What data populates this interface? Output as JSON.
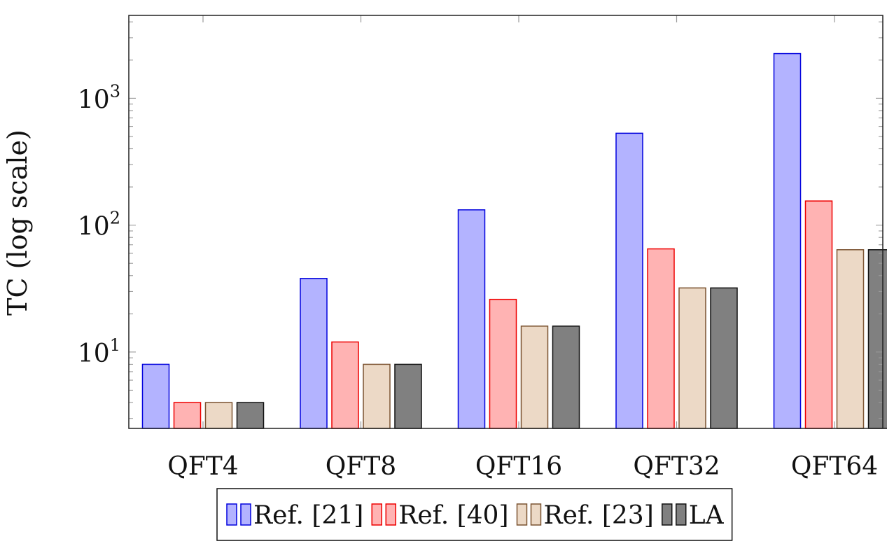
{
  "chart_data": {
    "type": "bar",
    "title": "",
    "xlabel": "",
    "ylabel": "TC (log scale)",
    "yscale": "log",
    "ylim": [
      2.5,
      4500
    ],
    "ytick_labels": [
      {
        "value": 10,
        "base": "10",
        "exp": "1"
      },
      {
        "value": 100,
        "base": "10",
        "exp": "2"
      },
      {
        "value": 1000,
        "base": "10",
        "exp": "3"
      }
    ],
    "categories": [
      "QFT4",
      "QFT8",
      "QFT16",
      "QFT32",
      "QFT64"
    ],
    "series": [
      {
        "name": "Ref. [21]",
        "values": [
          8,
          38,
          132,
          530,
          2250
        ],
        "fill": "#b3b3ff",
        "stroke": "#0000dd"
      },
      {
        "name": "Ref. [40]",
        "values": [
          4,
          12,
          26,
          65,
          155
        ],
        "fill": "#ffb3b3",
        "stroke": "#ee0000"
      },
      {
        "name": "Ref. [23]",
        "values": [
          4,
          8,
          16,
          32,
          64
        ],
        "fill": "#ecd9c6",
        "stroke": "#7a5230"
      },
      {
        "name": "LA",
        "values": [
          4,
          8,
          16,
          32,
          64
        ],
        "fill": "#808080",
        "stroke": "#111111"
      }
    ],
    "grid": false,
    "legend_position": "bottom-center"
  }
}
